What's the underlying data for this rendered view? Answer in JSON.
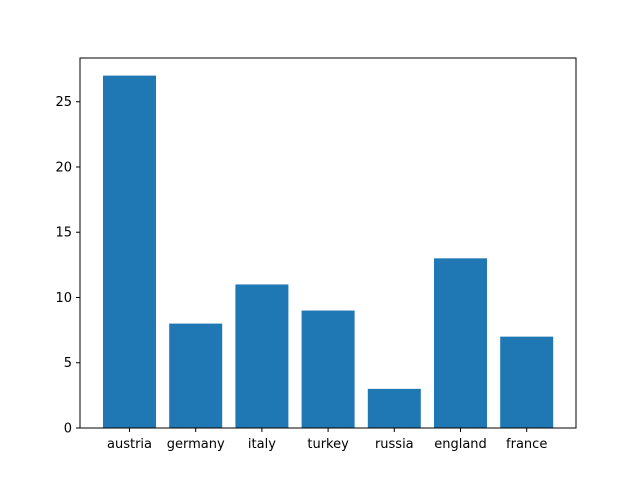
{
  "chart_data": {
    "type": "bar",
    "categories": [
      "austria",
      "germany",
      "italy",
      "turkey",
      "russia",
      "england",
      "france"
    ],
    "values": [
      27,
      8,
      11,
      9,
      3,
      13,
      7
    ],
    "ylim": [
      0,
      28.35
    ],
    "yticks": [
      0,
      5,
      10,
      15,
      20,
      25
    ],
    "grid": false,
    "bar_color": "#1f77b4"
  }
}
